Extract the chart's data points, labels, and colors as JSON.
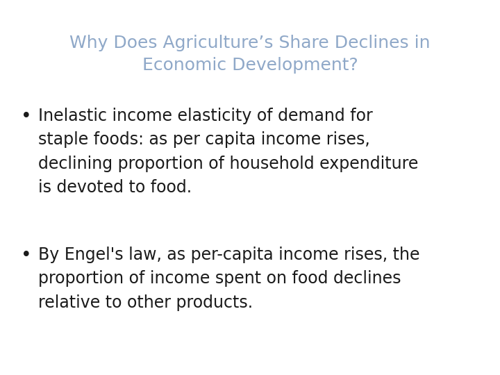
{
  "title_line1": "Why Does Agriculture’s Share Declines in",
  "title_line2": "Economic Development?",
  "title_color": "#8fa8c8",
  "title_fontsize": 18,
  "bullet1_line1": "Inelastic income elasticity of demand for",
  "bullet1_line2": "staple foods: as per capita income rises,",
  "bullet1_line3": "declining proportion of household expenditure",
  "bullet1_line4": "is devoted to food.",
  "bullet2_line1": "By Engel's law, as per-capita income rises, the",
  "bullet2_line2": "proportion of income spent on food declines",
  "bullet2_line3": "relative to other products.",
  "bullet_color": "#1a1a1a",
  "bullet_fontsize": 17,
  "background_color": "#ffffff"
}
